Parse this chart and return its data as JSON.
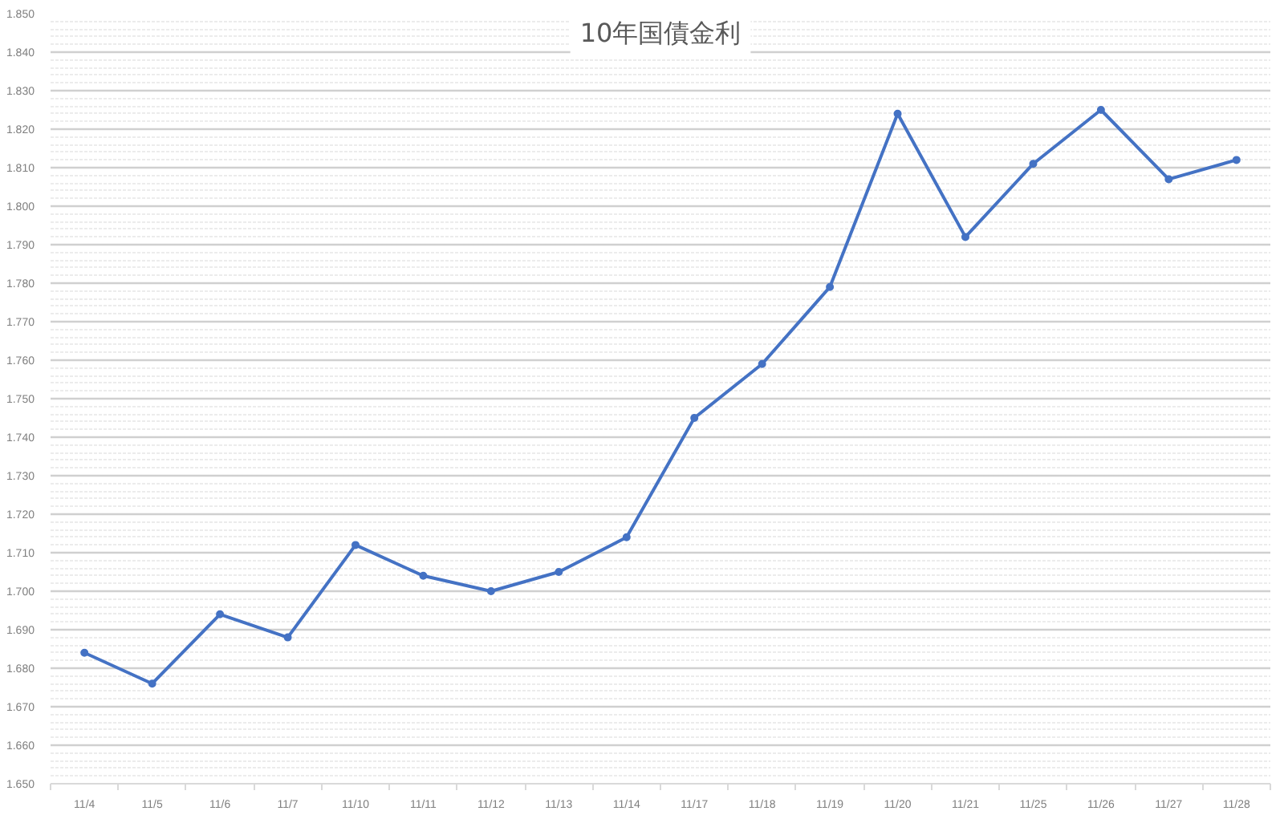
{
  "chart_data": {
    "type": "line",
    "title": "10年国債金利",
    "categories": [
      "11/4",
      "11/5",
      "11/6",
      "11/7",
      "11/10",
      "11/11",
      "11/12",
      "11/13",
      "11/14",
      "11/17",
      "11/18",
      "11/19",
      "11/20",
      "11/21",
      "11/25",
      "11/26",
      "11/27",
      "11/28"
    ],
    "values": [
      1.684,
      1.676,
      1.694,
      1.688,
      1.712,
      1.704,
      1.7,
      1.705,
      1.714,
      1.745,
      1.759,
      1.779,
      1.824,
      1.792,
      1.811,
      1.825,
      1.807,
      1.812
    ],
    "color": "#4472c4",
    "ylim": [
      1.65,
      1.85
    ],
    "yticks": [
      {
        "value": 1.65,
        "label": "1.650"
      },
      {
        "value": 1.66,
        "label": "1.660"
      },
      {
        "value": 1.67,
        "label": "1.670"
      },
      {
        "value": 1.68,
        "label": "1.680"
      },
      {
        "value": 1.69,
        "label": "1.690"
      },
      {
        "value": 1.7,
        "label": "1.700"
      },
      {
        "value": 1.71,
        "label": "1.710"
      },
      {
        "value": 1.72,
        "label": "1.720"
      },
      {
        "value": 1.73,
        "label": "1.730"
      },
      {
        "value": 1.74,
        "label": "1.740"
      },
      {
        "value": 1.75,
        "label": "1.750"
      },
      {
        "value": 1.76,
        "label": "1.760"
      },
      {
        "value": 1.77,
        "label": "1.770"
      },
      {
        "value": 1.78,
        "label": "1.780"
      },
      {
        "value": 1.79,
        "label": "1.790"
      },
      {
        "value": 1.8,
        "label": "1.800"
      },
      {
        "value": 1.81,
        "label": "1.810"
      },
      {
        "value": 1.82,
        "label": "1.820"
      },
      {
        "value": 1.83,
        "label": "1.830"
      },
      {
        "value": 1.84,
        "label": "1.840"
      },
      {
        "value": 1.85,
        "label": "1.850"
      }
    ],
    "grid": "y",
    "marker": "circle",
    "line_style": "solid"
  }
}
